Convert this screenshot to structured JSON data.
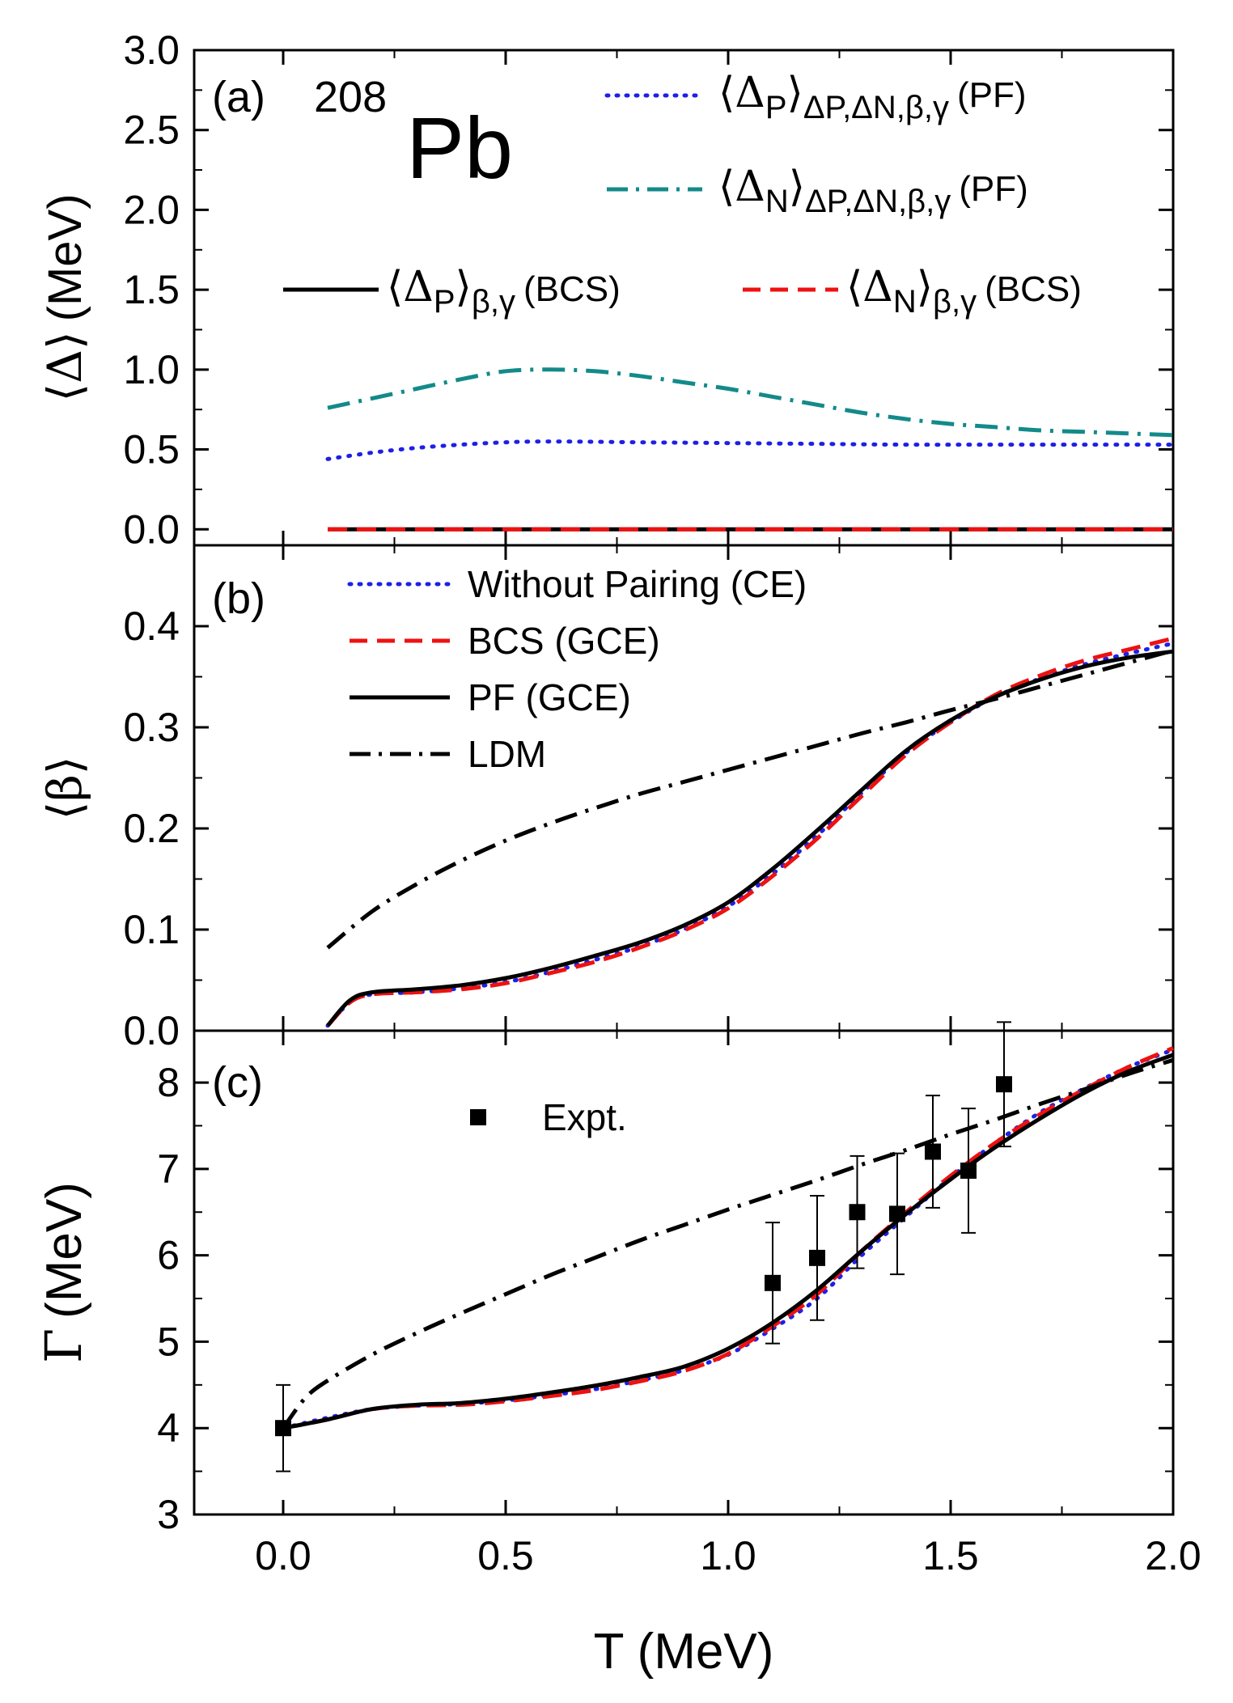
{
  "chart_data": [
    {
      "type": "line",
      "panel_label": "(a)",
      "nucleus_mass": "208",
      "nucleus_symbol": "Pb",
      "ylabel_symbol": "⟨Δ⟩",
      "ylabel_unit": "(MeV)",
      "xlim": [
        -0.2,
        2.0
      ],
      "ylim": [
        -0.1,
        3.0
      ],
      "yticks": [
        "0.0",
        "0.5",
        "1.0",
        "1.5",
        "2.0",
        "2.5",
        "3.0"
      ],
      "series": [
        {
          "name": "⟨ΔP⟩ΔP,ΔN,β,γ (PF)",
          "legend_main": "⟨Δ",
          "legend_sub1": "P",
          "legend_close": "⟩",
          "legend_sub2": "ΔP,ΔN,β,γ",
          "legend_tag": "(PF)",
          "color": "#1f1fe6",
          "style": "dotted",
          "x": [
            0.1,
            0.2,
            0.3,
            0.4,
            0.5,
            0.6,
            0.8,
            1.0,
            1.2,
            1.4,
            1.6,
            1.8,
            2.0
          ],
          "y": [
            0.44,
            0.48,
            0.51,
            0.53,
            0.545,
            0.55,
            0.545,
            0.54,
            0.535,
            0.53,
            0.53,
            0.53,
            0.53
          ]
        },
        {
          "name": "⟨ΔN⟩ΔP,ΔN,β,γ (PF)",
          "legend_main": "⟨Δ",
          "legend_sub1": "N",
          "legend_close": "⟩",
          "legend_sub2": "ΔP,ΔN,β,γ",
          "legend_tag": "(PF)",
          "color": "#138a8a",
          "style": "dashdot",
          "x": [
            0.1,
            0.2,
            0.3,
            0.4,
            0.5,
            0.6,
            0.7,
            0.8,
            0.9,
            1.0,
            1.1,
            1.2,
            1.3,
            1.4,
            1.5,
            1.6,
            1.7,
            1.8,
            1.9,
            2.0
          ],
          "y": [
            0.76,
            0.82,
            0.88,
            0.94,
            0.99,
            1.0,
            0.99,
            0.96,
            0.92,
            0.88,
            0.83,
            0.78,
            0.73,
            0.69,
            0.66,
            0.64,
            0.62,
            0.61,
            0.6,
            0.59
          ]
        },
        {
          "name": "⟨ΔP⟩β,γ (BCS)",
          "legend_main": "⟨Δ",
          "legend_sub1": "P",
          "legend_close": "⟩",
          "legend_sub2": "β,γ",
          "legend_tag": "(BCS)",
          "color": "#000000",
          "style": "solid",
          "x": [
            0.1,
            2.0
          ],
          "y": [
            0.0,
            0.0
          ]
        },
        {
          "name": "⟨ΔN⟩β,γ (BCS)",
          "legend_main": "⟨Δ",
          "legend_sub1": "N",
          "legend_close": "⟩",
          "legend_sub2": "β,γ",
          "legend_tag": "(BCS)",
          "color": "#ee1111",
          "style": "dashed",
          "x": [
            0.1,
            2.0
          ],
          "y": [
            0.0,
            0.0
          ]
        }
      ]
    },
    {
      "type": "line",
      "panel_label": "(b)",
      "ylabel_symbol": "⟨β⟩",
      "xlim": [
        -0.2,
        2.0
      ],
      "ylim": [
        0.0,
        0.48
      ],
      "yticks": [
        "0.0",
        "0.1",
        "0.2",
        "0.3",
        "0.4"
      ],
      "series": [
        {
          "name": "Without Pairing (CE)",
          "color": "#1f1fe6",
          "style": "dotted",
          "x": [
            0.1,
            0.15,
            0.2,
            0.3,
            0.4,
            0.5,
            0.6,
            0.7,
            0.8,
            0.9,
            1.0,
            1.1,
            1.2,
            1.3,
            1.4,
            1.5,
            1.6,
            1.7,
            1.8,
            1.9,
            2.0
          ],
          "y": [
            0.005,
            0.028,
            0.036,
            0.038,
            0.042,
            0.048,
            0.058,
            0.07,
            0.083,
            0.1,
            0.123,
            0.155,
            0.193,
            0.235,
            0.275,
            0.305,
            0.33,
            0.348,
            0.362,
            0.373,
            0.383
          ]
        },
        {
          "name": "BCS (GCE)",
          "color": "#ee1111",
          "style": "dashed",
          "x": [
            0.1,
            0.15,
            0.2,
            0.3,
            0.4,
            0.5,
            0.6,
            0.7,
            0.8,
            0.9,
            1.0,
            1.1,
            1.2,
            1.3,
            1.4,
            1.5,
            1.6,
            1.7,
            1.8,
            1.9,
            2.0
          ],
          "y": [
            0.005,
            0.028,
            0.036,
            0.038,
            0.041,
            0.047,
            0.057,
            0.068,
            0.082,
            0.099,
            0.121,
            0.153,
            0.19,
            0.232,
            0.273,
            0.305,
            0.332,
            0.351,
            0.366,
            0.377,
            0.388
          ]
        },
        {
          "name": "PF (GCE)",
          "color": "#000000",
          "style": "solid",
          "x": [
            0.1,
            0.15,
            0.2,
            0.3,
            0.4,
            0.5,
            0.6,
            0.7,
            0.8,
            0.9,
            1.0,
            1.1,
            1.2,
            1.3,
            1.4,
            1.5,
            1.6,
            1.7,
            1.8,
            1.9,
            2.0
          ],
          "y": [
            0.005,
            0.03,
            0.038,
            0.041,
            0.045,
            0.052,
            0.062,
            0.074,
            0.087,
            0.104,
            0.127,
            0.16,
            0.198,
            0.238,
            0.277,
            0.307,
            0.33,
            0.347,
            0.36,
            0.369,
            0.375
          ]
        },
        {
          "name": "LDM",
          "color": "#000000",
          "style": "dashdot",
          "x": [
            0.1,
            0.2,
            0.3,
            0.4,
            0.5,
            0.6,
            0.7,
            0.8,
            0.9,
            1.0,
            1.1,
            1.2,
            1.3,
            1.4,
            1.5,
            1.6,
            1.7,
            1.8,
            1.9,
            2.0
          ],
          "y": [
            0.082,
            0.118,
            0.145,
            0.168,
            0.188,
            0.205,
            0.22,
            0.234,
            0.246,
            0.258,
            0.27,
            0.282,
            0.294,
            0.305,
            0.317,
            0.328,
            0.34,
            0.352,
            0.364,
            0.376
          ]
        }
      ]
    },
    {
      "type": "line",
      "panel_label": "(c)",
      "ylabel_symbol": "Γ",
      "ylabel_unit": "(MeV)",
      "xlabel": "T (MeV)",
      "xlim": [
        -0.2,
        2.0
      ],
      "ylim": [
        3.0,
        8.6
      ],
      "xticks": [
        "0.0",
        "0.5",
        "1.0",
        "1.5",
        "2.0"
      ],
      "yticks": [
        "3",
        "4",
        "5",
        "6",
        "7",
        "8"
      ],
      "series": [
        {
          "name": "Without Pairing (CE)",
          "color": "#1f1fe6",
          "style": "dotted",
          "x": [
            0.0,
            0.1,
            0.2,
            0.3,
            0.4,
            0.5,
            0.6,
            0.7,
            0.8,
            0.9,
            1.0,
            1.1,
            1.2,
            1.3,
            1.4,
            1.5,
            1.6,
            1.7,
            1.8,
            1.9,
            2.0
          ],
          "y": [
            4.0,
            4.12,
            4.22,
            4.26,
            4.28,
            4.32,
            4.38,
            4.45,
            4.55,
            4.67,
            4.85,
            5.15,
            5.5,
            6.0,
            6.45,
            6.9,
            7.3,
            7.65,
            7.93,
            8.18,
            8.38
          ]
        },
        {
          "name": "BCS (GCE)",
          "color": "#ee1111",
          "style": "dashed",
          "x": [
            0.0,
            0.1,
            0.2,
            0.3,
            0.4,
            0.5,
            0.6,
            0.7,
            0.8,
            0.9,
            1.0,
            1.1,
            1.2,
            1.3,
            1.4,
            1.5,
            1.6,
            1.7,
            1.8,
            1.9,
            2.0
          ],
          "y": [
            4.0,
            4.1,
            4.22,
            4.26,
            4.27,
            4.31,
            4.37,
            4.44,
            4.54,
            4.66,
            4.86,
            5.18,
            5.55,
            6.05,
            6.5,
            6.92,
            7.3,
            7.63,
            7.92,
            8.18,
            8.4
          ]
        },
        {
          "name": "PF (GCE)",
          "color": "#000000",
          "style": "solid",
          "x": [
            0.0,
            0.1,
            0.2,
            0.3,
            0.4,
            0.5,
            0.6,
            0.7,
            0.8,
            0.9,
            1.0,
            1.1,
            1.2,
            1.3,
            1.4,
            1.5,
            1.6,
            1.7,
            1.8,
            1.9,
            2.0
          ],
          "y": [
            4.0,
            4.1,
            4.22,
            4.27,
            4.29,
            4.34,
            4.41,
            4.49,
            4.59,
            4.71,
            4.92,
            5.22,
            5.6,
            6.05,
            6.48,
            6.88,
            7.25,
            7.58,
            7.88,
            8.13,
            8.32
          ]
        },
        {
          "name": "LDM",
          "color": "#000000",
          "style": "dashdot",
          "x": [
            0.0,
            0.05,
            0.1,
            0.2,
            0.3,
            0.4,
            0.5,
            0.6,
            0.7,
            0.8,
            0.9,
            1.0,
            1.1,
            1.2,
            1.3,
            1.4,
            1.5,
            1.6,
            1.7,
            1.8,
            1.9,
            2.0
          ],
          "y": [
            4.0,
            4.35,
            4.55,
            4.85,
            5.1,
            5.33,
            5.55,
            5.77,
            5.97,
            6.17,
            6.35,
            6.53,
            6.7,
            6.87,
            7.05,
            7.22,
            7.4,
            7.57,
            7.75,
            7.92,
            8.1,
            8.26
          ]
        },
        {
          "name": "Expt.",
          "color": "#000000",
          "style": "markers",
          "x": [
            0.0,
            1.1,
            1.2,
            1.29,
            1.38,
            1.46,
            1.54,
            1.62
          ],
          "y": [
            4.0,
            5.68,
            5.97,
            6.5,
            6.48,
            7.2,
            6.98,
            7.98
          ],
          "yerr": [
            0.5,
            0.7,
            0.72,
            0.65,
            0.7,
            0.65,
            0.72,
            0.72
          ]
        }
      ]
    }
  ]
}
